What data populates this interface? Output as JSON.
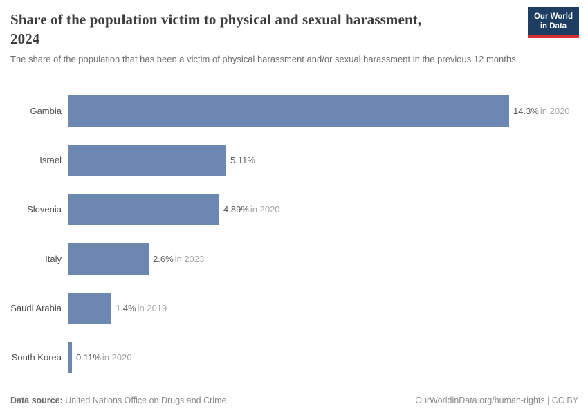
{
  "header": {
    "title": "Share of the population victim to physical and sexual harassment,",
    "title_year": "2024",
    "subtitle": "The share of the population that has been a victim of physical harassment and/or sexual harassment in the previous 12 months.",
    "logo": {
      "line1": "Our World",
      "line2": "in Data"
    }
  },
  "chart_data": {
    "type": "bar",
    "orientation": "horizontal",
    "title": "Share of the population victim to physical and sexual harassment, 2024",
    "unit": "%",
    "xlim": [
      0,
      14.3
    ],
    "grid": false,
    "legend": "none",
    "categories": [
      "Gambia",
      "Israel",
      "Slovenia",
      "Italy",
      "Saudi Arabia",
      "South Korea"
    ],
    "values": [
      14.3,
      5.11,
      4.89,
      2.6,
      1.4,
      0.11
    ],
    "bar_color": "#6c88b1",
    "rows": [
      {
        "label": "Gambia",
        "value": 14.3,
        "value_label": "14.3%",
        "year_label": "in 2020"
      },
      {
        "label": "Israel",
        "value": 5.11,
        "value_label": "5.11%",
        "year_label": ""
      },
      {
        "label": "Slovenia",
        "value": 4.89,
        "value_label": "4.89%",
        "year_label": "in 2020"
      },
      {
        "label": "Italy",
        "value": 2.6,
        "value_label": "2.6%",
        "year_label": "in 2023"
      },
      {
        "label": "Saudi Arabia",
        "value": 1.4,
        "value_label": "1.4%",
        "year_label": "in 2019"
      },
      {
        "label": "South Korea",
        "value": 0.11,
        "value_label": "0.11%",
        "year_label": "in 2020"
      }
    ]
  },
  "footer": {
    "source_label": "Data source:",
    "source_value": "United Nations Office on Drugs and Crime",
    "attribution": "OurWorldinData.org/human-rights | CC BY"
  }
}
